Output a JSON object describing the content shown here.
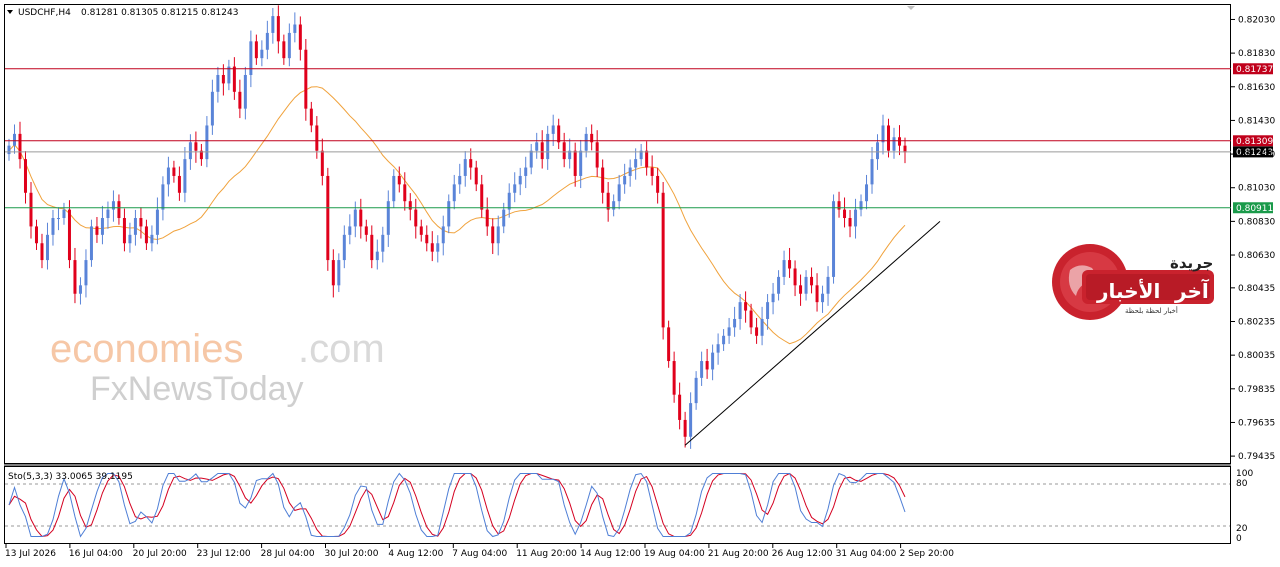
{
  "header": {
    "symbol_label": "USDCHF,H4",
    "ohlc": "0.81281 0.81305 0.81215 0.81243"
  },
  "oscillator": {
    "label": "Sto(5,3,3) 33.0065 39.1195",
    "levels": [
      "100",
      "80",
      "20",
      "0"
    ]
  },
  "watermark": {
    "line1_main": "economies",
    "line1_tld": ".com",
    "line2": "FxNewsToday"
  },
  "logo": {
    "top": "جريدة",
    "main_a": "آخر",
    "main_b": "الأخبار",
    "sub": "أخبار لحظة بلحظة"
  },
  "colors": {
    "bull": "#5a84d8",
    "bear": "#e0001b",
    "ma": "#f0a23c",
    "resistance": "#c0001b",
    "support": "#1a9a4a",
    "stoch_main": "#4f7fd6",
    "stoch_signal": "#d40020",
    "current_price": "#000000"
  },
  "chart_data": {
    "type": "candlestick",
    "instrument": "USDCHF",
    "timeframe": "H4",
    "price_axis_ticks": [
      "0.82030",
      "0.81830",
      "0.81630",
      "0.81430",
      "0.81230",
      "0.81030",
      "0.80830",
      "0.80630",
      "0.80435",
      "0.80235",
      "0.80035",
      "0.79835",
      "0.79635",
      "0.79435"
    ],
    "ylim": [
      0.794,
      0.8211
    ],
    "time_axis_labels": [
      "13 Jul 2026",
      "16 Jul 04:00",
      "20 Jul 20:00",
      "23 Jul 12:00",
      "28 Jul 04:00",
      "30 Jul 20:00",
      "4 Aug 12:00",
      "7 Aug 04:00",
      "11 Aug 20:00",
      "14 Aug 12:00",
      "19 Aug 04:00",
      "21 Aug 20:00",
      "26 Aug 12:00",
      "31 Aug 04:00",
      "2 Sep 20:00"
    ],
    "horizontal_levels": [
      {
        "value": 0.81737,
        "label": "0.81737",
        "role": "resistance"
      },
      {
        "value": 0.81309,
        "label": "0.81309",
        "role": "resistance"
      },
      {
        "value": 0.81243,
        "label": "0.81243",
        "role": "current"
      },
      {
        "value": 0.80911,
        "label": "0.80911",
        "role": "support"
      }
    ],
    "trendline": {
      "from": [
        0.795
      ],
      "to": [
        0.8083
      ]
    },
    "closes": [
      0.8128,
      0.8135,
      0.812,
      0.81,
      0.808,
      0.807,
      0.806,
      0.8075,
      0.8085,
      0.8085,
      0.809,
      0.806,
      0.804,
      0.8045,
      0.806,
      0.808,
      0.8075,
      0.8085,
      0.809,
      0.8095,
      0.8085,
      0.807,
      0.8075,
      0.8085,
      0.808,
      0.807,
      0.8075,
      0.809,
      0.8105,
      0.8115,
      0.811,
      0.81,
      0.812,
      0.813,
      0.8125,
      0.812,
      0.814,
      0.816,
      0.817,
      0.8165,
      0.8175,
      0.816,
      0.815,
      0.817,
      0.819,
      0.818,
      0.8185,
      0.8195,
      0.8205,
      0.819,
      0.818,
      0.8195,
      0.82,
      0.8185,
      0.815,
      0.814,
      0.8125,
      0.811,
      0.806,
      0.8045,
      0.806,
      0.8075,
      0.808,
      0.809,
      0.808,
      0.8075,
      0.806,
      0.8065,
      0.8075,
      0.8095,
      0.811,
      0.8105,
      0.8095,
      0.809,
      0.808,
      0.8075,
      0.807,
      0.8065,
      0.807,
      0.808,
      0.8095,
      0.8105,
      0.811,
      0.812,
      0.8115,
      0.8105,
      0.809,
      0.808,
      0.807,
      0.808,
      0.809,
      0.81,
      0.8105,
      0.811,
      0.8115,
      0.8125,
      0.813,
      0.812,
      0.8135,
      0.814,
      0.813,
      0.812,
      0.8125,
      0.811,
      0.8125,
      0.8135,
      0.813,
      0.8115,
      0.81,
      0.809,
      0.8095,
      0.8105,
      0.811,
      0.8115,
      0.812,
      0.8125,
      0.8115,
      0.811,
      0.81,
      0.802,
      0.8,
      0.798,
      0.7965,
      0.7955,
      0.7975,
      0.799,
      0.8,
      0.7995,
      0.8005,
      0.801,
      0.8015,
      0.802,
      0.8025,
      0.8035,
      0.803,
      0.802,
      0.8015,
      0.8025,
      0.8035,
      0.804,
      0.805,
      0.806,
      0.8055,
      0.8045,
      0.804,
      0.805,
      0.8045,
      0.8035,
      0.804,
      0.805,
      0.8095,
      0.809,
      0.8085,
      0.808,
      0.809,
      0.8095,
      0.8105,
      0.812,
      0.813,
      0.814,
      0.8125,
      0.8133,
      0.8128,
      0.8124
    ]
  }
}
